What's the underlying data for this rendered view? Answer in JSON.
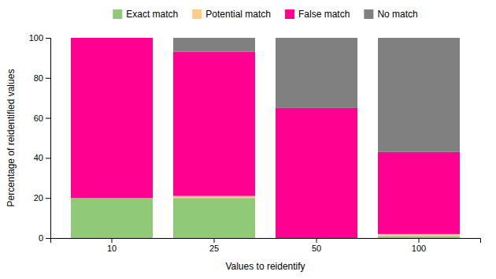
{
  "chart_data": {
    "type": "bar",
    "stacked": true,
    "categories": [
      "10",
      "25",
      "50",
      "100"
    ],
    "series": [
      {
        "name": "Exact match",
        "color": "#90c978",
        "values": [
          20,
          20,
          0,
          1
        ]
      },
      {
        "name": "Potential match",
        "color": "#ffcc88",
        "values": [
          0,
          1,
          0,
          1
        ]
      },
      {
        "name": "False match",
        "color": "#ff0090",
        "values": [
          80,
          72,
          65,
          41
        ]
      },
      {
        "name": "No match",
        "color": "#808080",
        "values": [
          0,
          7,
          35,
          57
        ]
      }
    ],
    "xlabel": "Values to reidentify",
    "ylabel": "Percentage of reidentified values",
    "ylim": [
      0,
      100
    ],
    "yticks": [
      0,
      20,
      40,
      60,
      80,
      100
    ],
    "grid": false,
    "legend": "top"
  }
}
